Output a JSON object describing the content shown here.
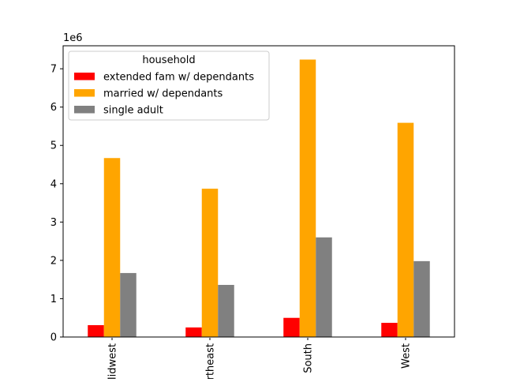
{
  "chart_data": {
    "type": "bar",
    "title": "",
    "xlabel": "",
    "ylabel": "",
    "offset_label": "1e6",
    "categories": [
      "Midwest",
      "Northeast",
      "South",
      "West"
    ],
    "category_labels_visible": [
      "dwest",
      "heast",
      "South",
      "West"
    ],
    "ylim": [
      0,
      7.6
    ],
    "yticks": [
      0,
      1,
      2,
      3,
      4,
      5,
      6,
      7
    ],
    "ytick_labels": [
      "0",
      "1",
      "2",
      "3",
      "4",
      "5",
      "6",
      "7"
    ],
    "x_tick_rotation_deg": 90,
    "grid": false,
    "legend": {
      "title": "household",
      "position": "top-left"
    },
    "series": [
      {
        "name": "extended fam w/ dependants",
        "color": "#ff0000",
        "values": [
          0.31,
          0.25,
          0.5,
          0.37
        ]
      },
      {
        "name": "married w/ dependants",
        "color": "#ffa500",
        "values": [
          4.67,
          3.87,
          7.24,
          5.59
        ]
      },
      {
        "name": "single adult",
        "color": "#808080",
        "values": [
          1.67,
          1.36,
          2.6,
          1.98
        ]
      }
    ]
  }
}
